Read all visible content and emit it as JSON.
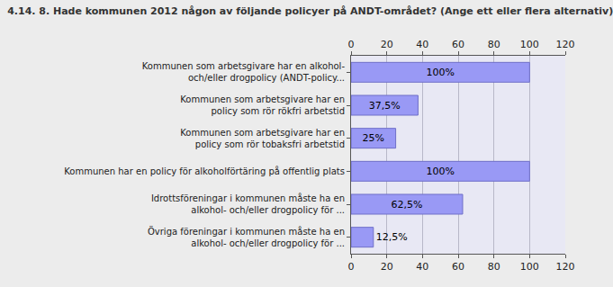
{
  "chart_data": {
    "type": "bar",
    "orientation": "horizontal",
    "title": "4.14. 8. Hade kommunen 2012 någon av följande policyer på ANDT-området? (Ange ett eller flera alternativ)",
    "categories": [
      "Kommunen som arbetsgivare har en alkohol-\noch/eller drogpolicy (ANDT-policy...",
      "Kommunen som arbetsgivare har en\npolicy som rör rökfri arbetstid",
      "Kommunen som arbetsgivare har en\npolicy som rör tobaksfri arbetstid",
      "Kommunen har en policy för alkoholförtäring på offentlig plats",
      "Idrottsföreningar i kommunen måste ha en\nalkohol- och/eller drogpolicy för ...",
      "Övriga föreningar i kommunen måste ha en\nalkohol- och/eller drogpolicy för ..."
    ],
    "values": [
      100,
      37.5,
      25,
      100,
      62.5,
      12.5
    ],
    "value_labels": [
      "100%",
      "37,5%",
      "25%",
      "100%",
      "62,5%",
      "12,5%"
    ],
    "data_labels": true,
    "color": "#9999f5",
    "xlim": [
      0,
      120
    ],
    "xticks": [
      0,
      20,
      40,
      60,
      80,
      100,
      120
    ],
    "grid": true
  }
}
